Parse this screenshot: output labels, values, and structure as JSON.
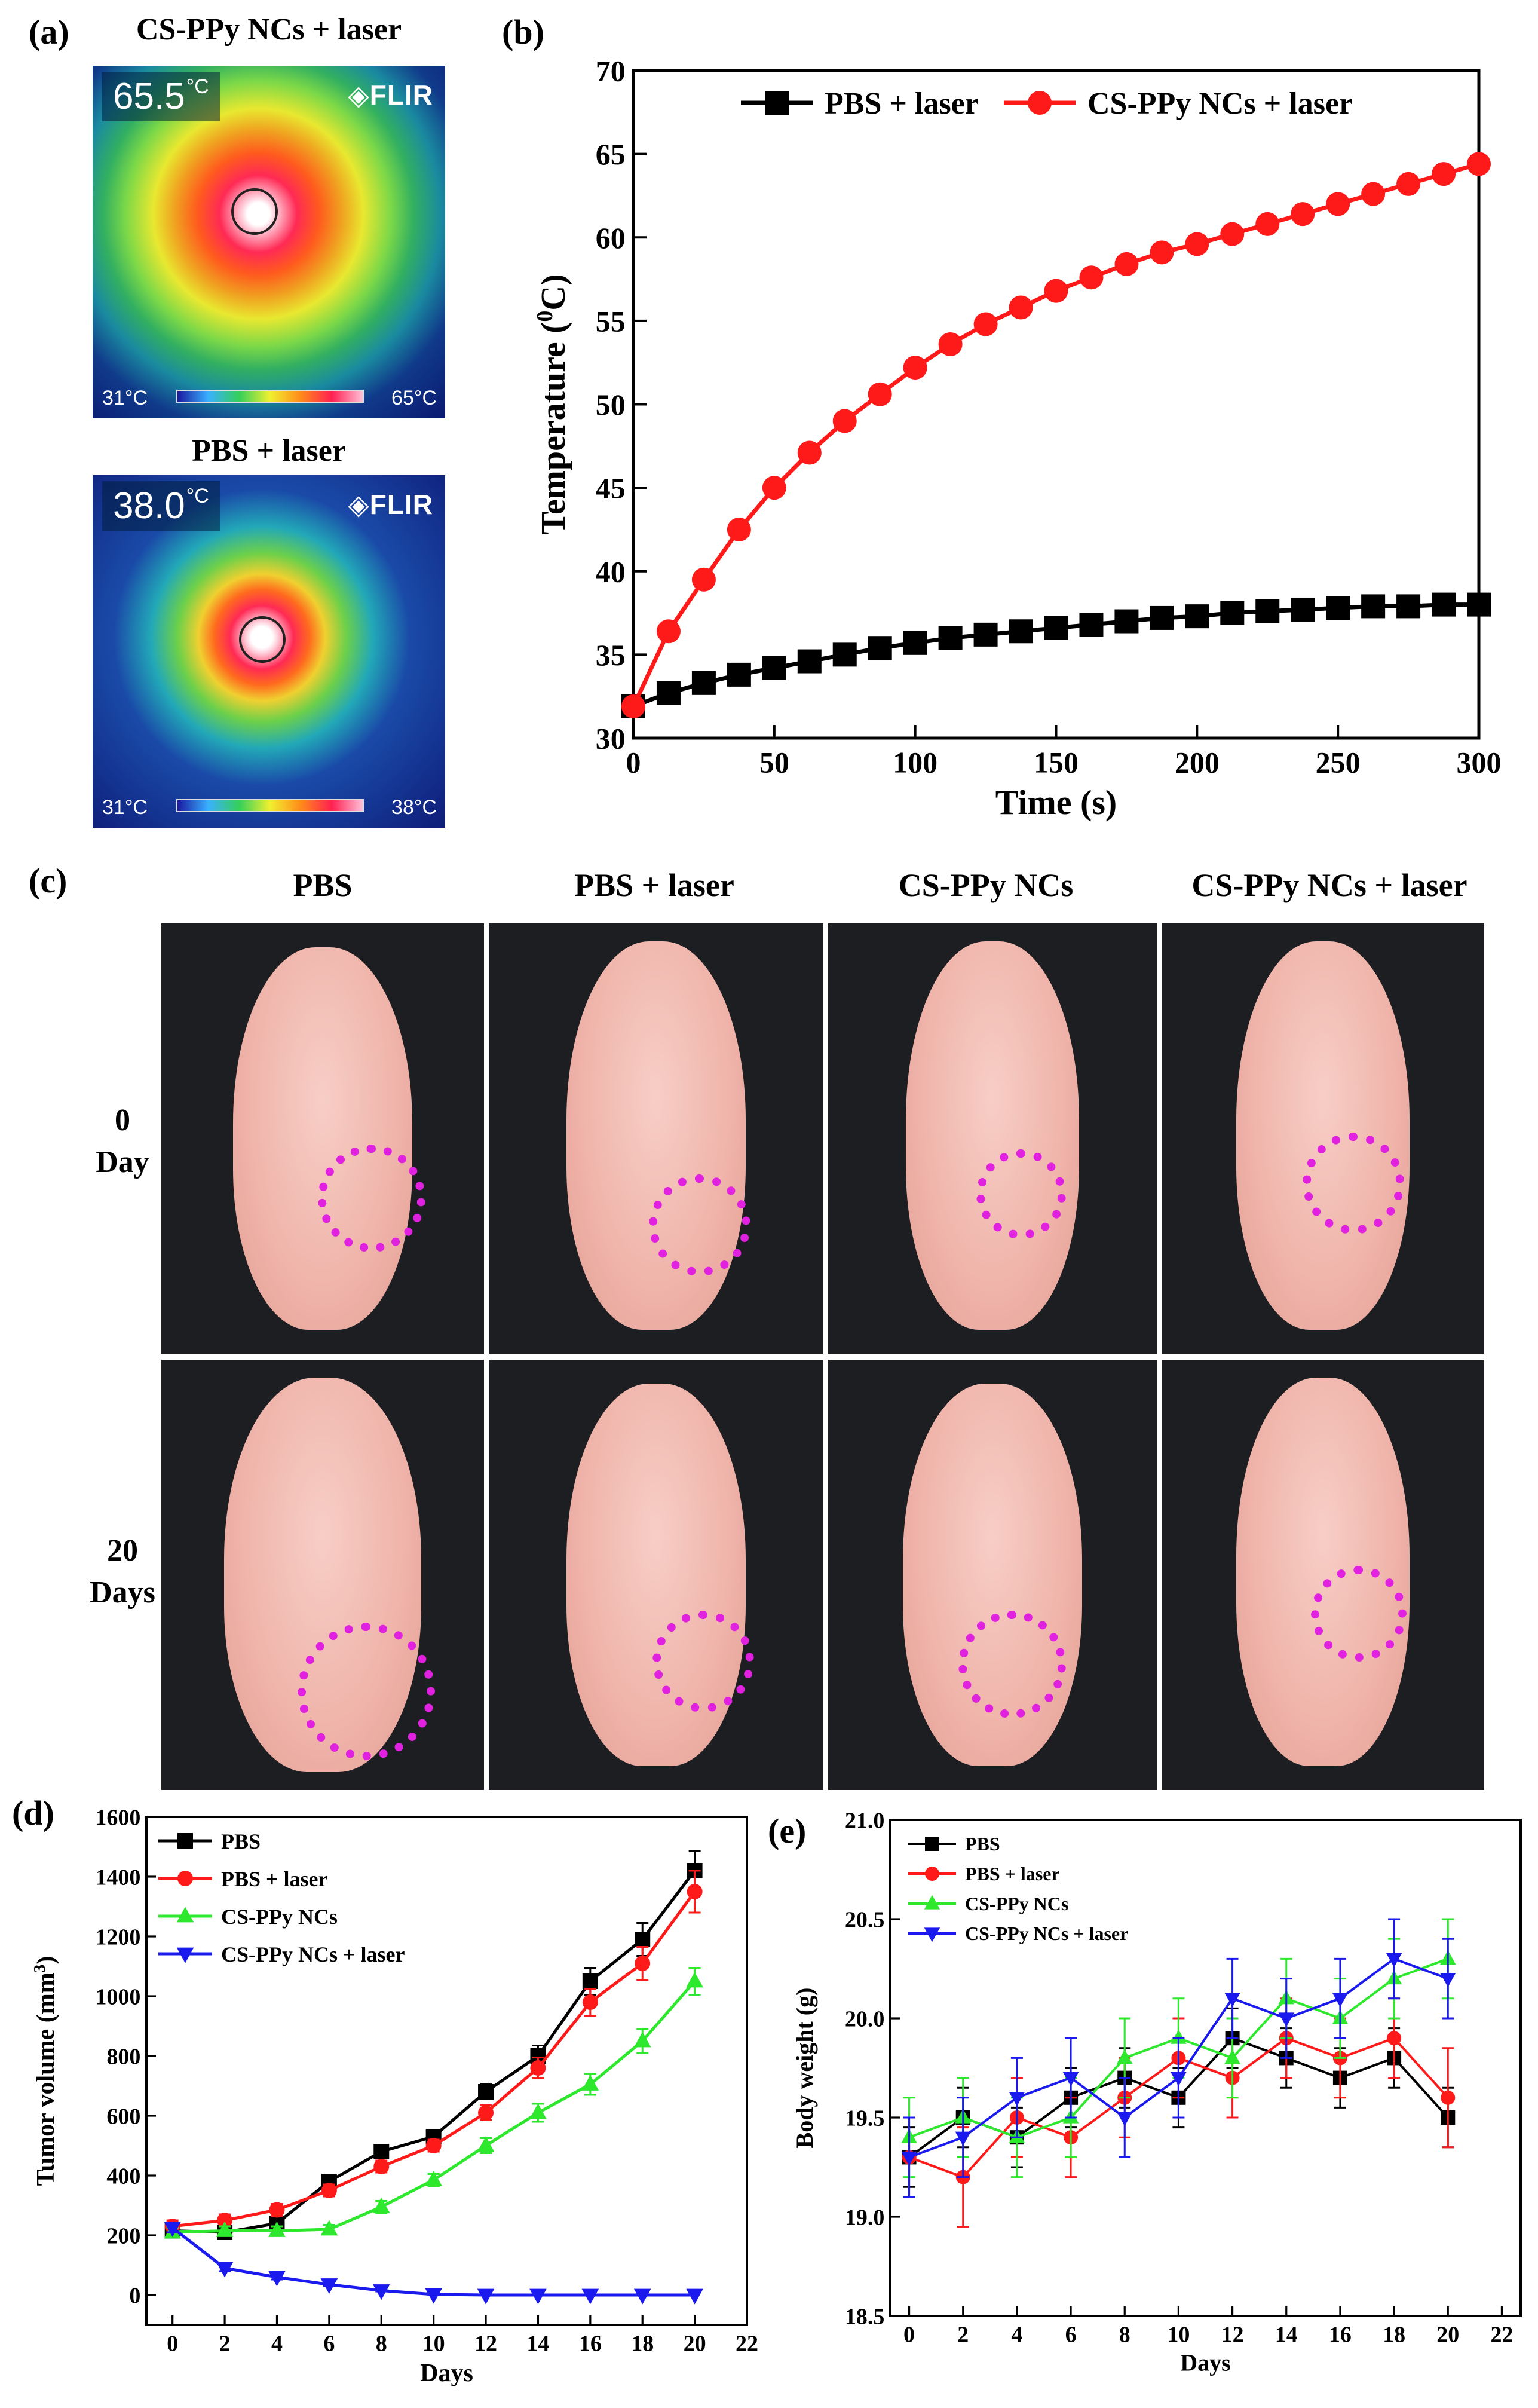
{
  "panels": {
    "a": {
      "letter": "(a)",
      "images": [
        {
          "caption": "CS-PPy NCs + laser",
          "temperature": "65.5",
          "unit": "°C",
          "brand": "FLIR",
          "scale_min": "31°C",
          "scale_max": "65°C"
        },
        {
          "caption": "PBS + laser",
          "temperature": "38.0",
          "unit": "°C",
          "brand": "FLIR",
          "scale_min": "31°C",
          "scale_max": "38°C"
        }
      ]
    },
    "b": {
      "letter": "(b)"
    },
    "c": {
      "letter": "(c)",
      "columns": [
        "PBS",
        "PBS + laser",
        "CS-PPy NCs",
        "CS-PPy NCs + laser"
      ],
      "rows": [
        {
          "number": "0",
          "unit": "Day"
        },
        {
          "number": "20",
          "unit": "Days"
        }
      ]
    },
    "d": {
      "letter": "(d)"
    },
    "e": {
      "letter": "(e)"
    }
  },
  "colors": {
    "black": "#000000",
    "red": "#ff1a1a",
    "green": "#2ee82e",
    "blue": "#1a1aee",
    "ring": "#e021e0"
  },
  "chart_data": [
    {
      "id": "b",
      "type": "line",
      "title": "",
      "xlabel": "Time (s)",
      "ylabel_main": "Temperature (",
      "ylabel_sup": "0",
      "ylabel_tail": "C)",
      "xlim": [
        0,
        300
      ],
      "ylim": [
        30,
        70
      ],
      "xticks": [
        0,
        50,
        100,
        150,
        200,
        250,
        300
      ],
      "yticks": [
        30,
        35,
        40,
        45,
        50,
        55,
        60,
        65,
        70
      ],
      "legend": "top",
      "x": [
        0,
        12.5,
        25,
        37.5,
        50,
        62.5,
        75,
        87.5,
        100,
        112.5,
        125,
        137.5,
        150,
        162.5,
        175,
        187.5,
        200,
        212.5,
        225,
        237.5,
        250,
        262.5,
        275,
        287.5,
        300
      ],
      "series": [
        {
          "name": "PBS + laser",
          "color": "#000000",
          "marker": "square",
          "values": [
            31.9,
            32.7,
            33.3,
            33.8,
            34.2,
            34.6,
            35.0,
            35.4,
            35.7,
            36.0,
            36.2,
            36.4,
            36.6,
            36.8,
            37.0,
            37.2,
            37.3,
            37.5,
            37.6,
            37.7,
            37.8,
            37.9,
            37.9,
            38.0,
            38.0
          ]
        },
        {
          "name": "CS-PPy NCs + laser",
          "color": "#ff1a1a",
          "marker": "circle",
          "values": [
            31.9,
            36.4,
            39.5,
            42.5,
            45.0,
            47.1,
            49.0,
            50.6,
            52.2,
            53.6,
            54.8,
            55.8,
            56.8,
            57.6,
            58.4,
            59.1,
            59.6,
            60.2,
            60.8,
            61.4,
            62.0,
            62.6,
            63.2,
            63.8,
            64.4
          ]
        }
      ]
    },
    {
      "id": "d",
      "type": "line",
      "title": "",
      "xlabel": "Days",
      "ylabel_main": "Tumor volume (mm",
      "ylabel_sup": "3",
      "ylabel_tail": ")",
      "xlim": [
        -1,
        22
      ],
      "ylim": [
        -100,
        1600
      ],
      "xticks": [
        0,
        2,
        4,
        6,
        8,
        10,
        12,
        14,
        16,
        18,
        20,
        22
      ],
      "yticks": [
        0,
        200,
        400,
        600,
        800,
        1000,
        1200,
        1400,
        1600
      ],
      "legend": "top-left",
      "x": [
        0,
        2,
        4,
        6,
        8,
        10,
        12,
        14,
        16,
        18,
        20
      ],
      "series": [
        {
          "name": "PBS",
          "color": "#000000",
          "marker": "square",
          "values": [
            215,
            210,
            240,
            380,
            480,
            530,
            680,
            800,
            1050,
            1190,
            1420
          ],
          "errors": [
            20,
            20,
            20,
            20,
            20,
            20,
            25,
            35,
            45,
            55,
            65
          ]
        },
        {
          "name": "PBS + laser",
          "color": "#ff1a1a",
          "marker": "circle",
          "values": [
            230,
            250,
            285,
            350,
            430,
            500,
            610,
            760,
            980,
            1110,
            1350
          ],
          "errors": [
            20,
            20,
            20,
            20,
            20,
            20,
            25,
            35,
            45,
            55,
            70
          ]
        },
        {
          "name": "CS-PPy NCs",
          "color": "#2ee82e",
          "marker": "triangle",
          "values": [
            210,
            215,
            215,
            220,
            295,
            385,
            500,
            610,
            705,
            850,
            1050
          ],
          "errors": [
            15,
            15,
            15,
            15,
            20,
            20,
            25,
            30,
            35,
            40,
            45
          ]
        },
        {
          "name": "CS-PPy NCs + laser",
          "color": "#1a1aee",
          "marker": "triangle-down",
          "values": [
            225,
            90,
            60,
            35,
            15,
            2,
            0,
            0,
            0,
            0,
            0
          ],
          "errors": [
            15,
            10,
            8,
            5,
            3,
            2,
            0,
            0,
            0,
            0,
            0
          ]
        }
      ]
    },
    {
      "id": "e",
      "type": "line",
      "title": "",
      "xlabel": "Days",
      "ylabel_main": "Body weight (g)",
      "ylabel_sup": "",
      "ylabel_tail": "",
      "xlim": [
        -0.7,
        22.7
      ],
      "ylim": [
        18.5,
        21.0
      ],
      "xticks": [
        0,
        2,
        4,
        6,
        8,
        10,
        12,
        14,
        16,
        18,
        20,
        22
      ],
      "yticks": [
        18.5,
        19.0,
        19.5,
        20.0,
        20.5,
        21.0
      ],
      "legend": "top-left",
      "x": [
        0,
        2,
        4,
        6,
        8,
        10,
        12,
        14,
        16,
        18,
        20
      ],
      "series": [
        {
          "name": "PBS",
          "color": "#000000",
          "marker": "square",
          "values": [
            19.3,
            19.5,
            19.4,
            19.6,
            19.7,
            19.6,
            19.9,
            19.8,
            19.7,
            19.8,
            19.5
          ],
          "errors": [
            0.15,
            0.15,
            0.15,
            0.15,
            0.15,
            0.15,
            0.15,
            0.15,
            0.15,
            0.15,
            0.15
          ]
        },
        {
          "name": "PBS + laser",
          "color": "#ff1a1a",
          "marker": "circle",
          "values": [
            19.3,
            19.2,
            19.5,
            19.4,
            19.6,
            19.8,
            19.7,
            19.9,
            19.8,
            19.9,
            19.6
          ],
          "errors": [
            0.2,
            0.25,
            0.2,
            0.2,
            0.2,
            0.2,
            0.2,
            0.2,
            0.2,
            0.2,
            0.25
          ]
        },
        {
          "name": "CS-PPy NCs",
          "color": "#2ee82e",
          "marker": "triangle",
          "values": [
            19.4,
            19.5,
            19.4,
            19.5,
            19.8,
            19.9,
            19.8,
            20.1,
            20.0,
            20.2,
            20.3
          ],
          "errors": [
            0.2,
            0.2,
            0.2,
            0.2,
            0.2,
            0.2,
            0.2,
            0.2,
            0.2,
            0.2,
            0.2
          ]
        },
        {
          "name": "CS-PPy NCs + laser",
          "color": "#1a1aee",
          "marker": "triangle-down",
          "values": [
            19.3,
            19.4,
            19.6,
            19.7,
            19.5,
            19.7,
            20.1,
            20.0,
            20.1,
            20.3,
            20.2
          ],
          "errors": [
            0.2,
            0.2,
            0.2,
            0.2,
            0.2,
            0.2,
            0.2,
            0.2,
            0.2,
            0.2,
            0.2
          ]
        }
      ]
    }
  ]
}
